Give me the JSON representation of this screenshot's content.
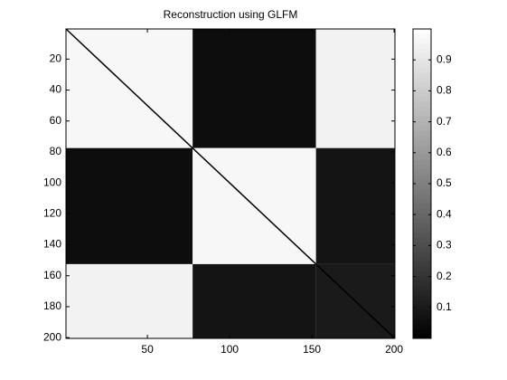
{
  "chart_data": {
    "type": "heatmap",
    "title": "Reconstruction using GLFM",
    "colormap": "gray",
    "xlim": [
      0.5,
      200.5
    ],
    "ylim": [
      0.5,
      200.5
    ],
    "y_reversed": true,
    "xticks": [
      50,
      100,
      150,
      200
    ],
    "yticks": [
      20,
      40,
      60,
      80,
      100,
      120,
      140,
      160,
      180,
      200
    ],
    "block_edges": [
      0.5,
      77.5,
      152.5,
      200.5
    ],
    "block_values": [
      [
        0.97,
        0.05,
        0.95
      ],
      [
        0.05,
        0.97,
        0.08
      ],
      [
        0.95,
        0.08,
        0.1
      ]
    ],
    "diagonal_value": 0,
    "clim": [
      0,
      1
    ],
    "colorbar_ticks": [
      0.1,
      0.2,
      0.3,
      0.4,
      0.5,
      0.6,
      0.7,
      0.8,
      0.9
    ]
  }
}
